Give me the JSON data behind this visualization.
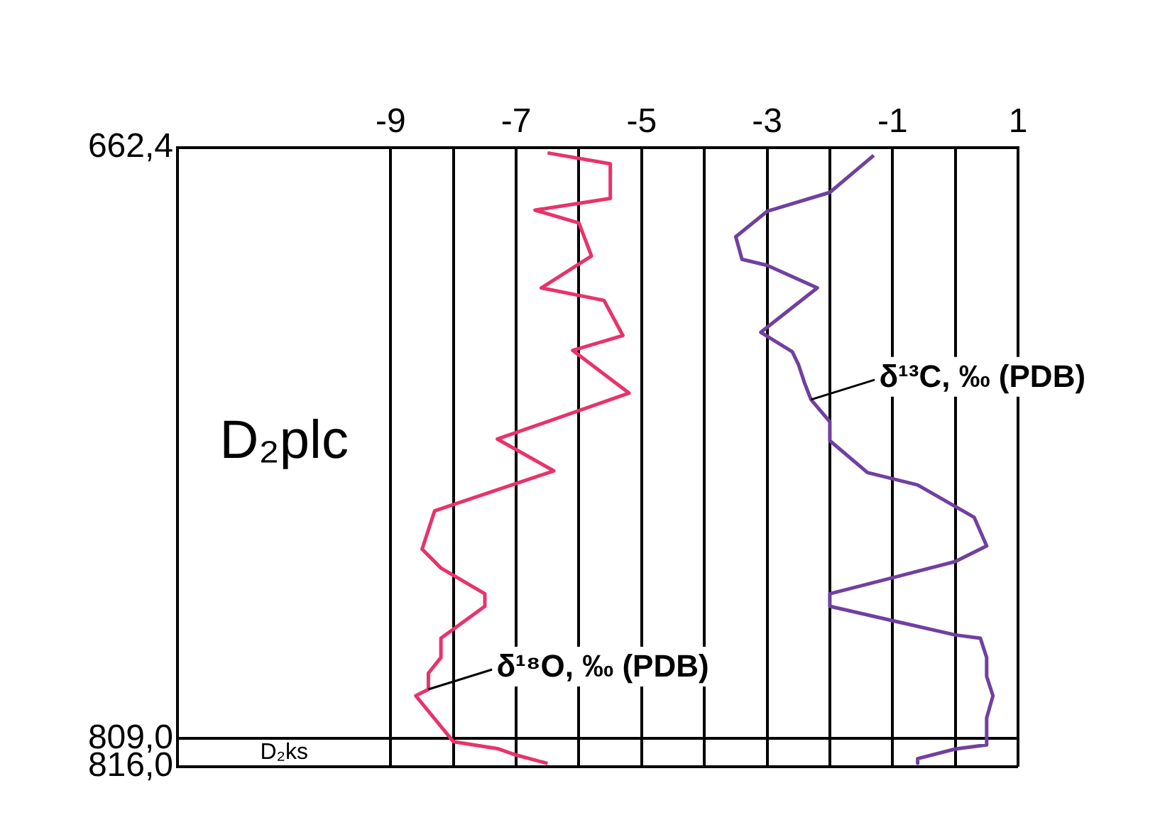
{
  "chart_data": {
    "type": "line",
    "orientation": "horizontal",
    "legend": false,
    "grid": true,
    "marker": "none",
    "line_style": "solid",
    "xlim": [
      -12.4,
      1
    ],
    "xticks": [
      -9,
      {
        "value": -8,
        "label": null
      },
      -7,
      {
        "value": -6,
        "label": null
      },
      -5,
      {
        "value": -4,
        "label": null
      },
      -3,
      {
        "value": -2,
        "label": null
      },
      -1,
      {
        "value": 0,
        "label": null
      },
      1
    ],
    "ylim": [
      816,
      662.4
    ],
    "yticks": [
      {
        "value": 662.4,
        "label": "662,4"
      },
      {
        "value": 809,
        "label": "809,0"
      },
      {
        "value": 816,
        "label": "816,0"
      }
    ],
    "annotations": [
      "D₂plc",
      "D₂ks"
    ],
    "series": [
      {
        "name": "δ¹⁸O, ‰ (PDB)",
        "color": "#e8336a",
        "x": [
          663.7,
          666.4,
          675.0,
          677.9,
          681.1,
          689.3,
          697.2,
          700.3,
          709.0,
          712.7,
          723.3,
          734.7,
          742.6,
          747.8,
          752.5,
          762.0,
          766.7,
          773.1,
          776.2,
          784.1,
          788.9,
          792.8,
          796.8,
          798.4,
          809.8,
          811.5,
          813.1,
          815.2
        ],
        "values": [
          -6.5,
          -5.5,
          -5.5,
          -6.7,
          -6.0,
          -5.8,
          -6.6,
          -5.6,
          -5.3,
          -6.1,
          -5.2,
          -7.3,
          -6.4,
          -7.4,
          -8.3,
          -8.5,
          -8.2,
          -7.5,
          -7.5,
          -8.2,
          -8.2,
          -8.4,
          -8.4,
          -8.6,
          -8.0,
          -7.3,
          -7.0,
          -6.5
        ]
      },
      {
        "name": "δ¹³C, ‰ (PDB)",
        "color": "#7040a0",
        "x": [
          664.3,
          673.5,
          678.2,
          684.5,
          690.1,
          691.6,
          697.2,
          708.2,
          713.0,
          716.2,
          720.9,
          724.9,
          730.4,
          735.1,
          743.0,
          746.1,
          754.1,
          761.2,
          765.1,
          773.1,
          776.2,
          783.3,
          784.1,
          788.9,
          793.6,
          798.4,
          803.9,
          809.0,
          810.6,
          811.6,
          814.0,
          815.1
        ],
        "values": [
          -1.3,
          -2.0,
          -3.0,
          -3.5,
          -3.4,
          -3.0,
          -2.2,
          -3.1,
          -2.6,
          -2.5,
          -2.4,
          -2.3,
          -2.0,
          -2.0,
          -1.4,
          -0.6,
          0.3,
          0.5,
          0.0,
          -2.0,
          -2.0,
          0.0,
          0.4,
          0.5,
          0.5,
          0.6,
          0.5,
          0.5,
          0.5,
          0.0,
          -0.6,
          -0.6
        ]
      }
    ]
  }
}
